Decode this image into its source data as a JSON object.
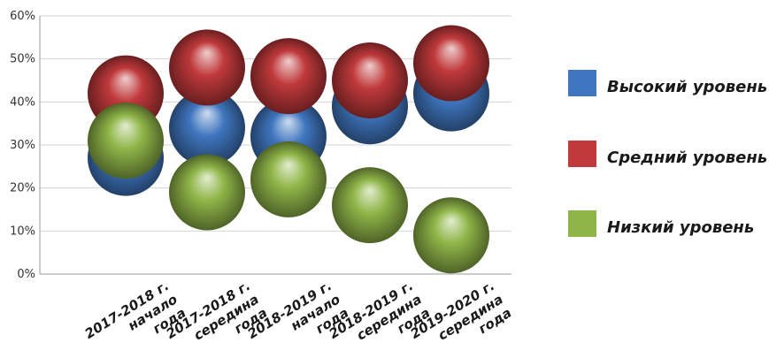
{
  "chart_data": {
    "type": "scatter",
    "categories": [
      [
        "2017-2018 г.",
        "начало",
        "года"
      ],
      [
        "2017-2018 г.",
        "середина",
        "года"
      ],
      [
        "2018-2019 г.",
        "начало",
        "года"
      ],
      [
        "2018-2019 г.",
        "середина",
        "года"
      ],
      [
        "2019-2020 г.",
        "середина",
        "года"
      ]
    ],
    "series": [
      {
        "name": "Высокий уровень",
        "color": "#3f76bf",
        "values": [
          27,
          34,
          32,
          39,
          42
        ]
      },
      {
        "name": "Средний уровень",
        "color": "#c0393b",
        "values": [
          42,
          48,
          46,
          45,
          49
        ]
      },
      {
        "name": "Низкий уровень",
        "color": "#8fb548",
        "values": [
          31,
          19,
          22,
          16,
          9
        ]
      }
    ],
    "draw_order": [
      0,
      1,
      2
    ],
    "y_ticks": [
      "0%",
      "10%",
      "20%",
      "30%",
      "40%",
      "50%",
      "60%"
    ],
    "ylim": [
      0,
      60
    ],
    "grid": true,
    "legend_position": "right"
  }
}
